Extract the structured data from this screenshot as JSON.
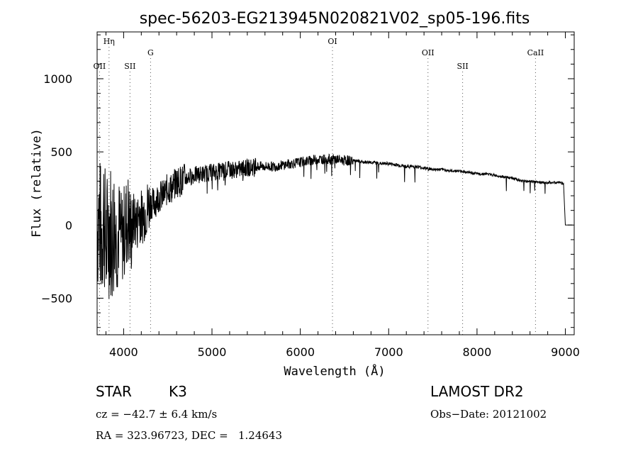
{
  "chart_data": {
    "type": "line",
    "title": "spec-56203-EG213945N020821V02_sp05-196.fits",
    "xlabel": "Wavelength (Å)",
    "ylabel": "Flux (relative)",
    "xlim": [
      3700,
      9100
    ],
    "ylim": [
      -750,
      1320
    ],
    "xticks": [
      4000,
      5000,
      6000,
      7000,
      8000,
      9000
    ],
    "yticks": [
      -500,
      0,
      500,
      1000
    ],
    "line_markers": [
      {
        "label": "OII",
        "wavelength": 3727,
        "tier": 2
      },
      {
        "label": "Hη",
        "wavelength": 3835,
        "tier": 0
      },
      {
        "label": "SII",
        "wavelength": 4072,
        "tier": 2
      },
      {
        "label": "G",
        "wavelength": 4305,
        "tier": 1
      },
      {
        "label": "OI",
        "wavelength": 6364,
        "tier": 0
      },
      {
        "label": "OII",
        "wavelength": 7445,
        "tier": 1
      },
      {
        "label": "SII",
        "wavelength": 7837,
        "tier": 2
      },
      {
        "label": "CaII",
        "wavelength": 8662,
        "tier": 1
      }
    ],
    "series": [
      {
        "x": [
          3700,
          3725,
          3750,
          3775,
          3800,
          3825,
          3850,
          3875,
          3900,
          3925,
          3950,
          3975,
          4000,
          4025,
          4050,
          4075,
          4100,
          4125,
          4150,
          4175,
          4200,
          4250,
          4300,
          4350,
          4400,
          4450,
          4500,
          4550,
          4600,
          4650,
          4700,
          4800,
          4900,
          5000,
          5100,
          5200,
          5300,
          5400,
          5500,
          5600,
          5700,
          5800,
          5900,
          6000,
          6100,
          6200,
          6300,
          6400,
          6500,
          6600,
          6700,
          6800,
          6900,
          7000,
          7100,
          7200,
          7300,
          7400,
          7500,
          7600,
          7700,
          7800,
          7900,
          8000,
          8100,
          8200,
          8300,
          8400,
          8500,
          8600,
          8700,
          8800,
          8900,
          8950,
          8980,
          9000
        ],
        "y": [
          0,
          50,
          -100,
          100,
          -150,
          -50,
          0,
          -100,
          50,
          -150,
          0,
          -100,
          -50,
          0,
          50,
          -50,
          0,
          50,
          0,
          100,
          50,
          100,
          150,
          150,
          200,
          200,
          250,
          250,
          300,
          300,
          320,
          340,
          350,
          360,
          370,
          380,
          380,
          390,
          400,
          400,
          400,
          410,
          420,
          430,
          440,
          450,
          450,
          450,
          440,
          440,
          430,
          430,
          420,
          420,
          410,
          400,
          400,
          390,
          380,
          380,
          370,
          370,
          360,
          350,
          350,
          340,
          330,
          320,
          300,
          300,
          290,
          290,
          290,
          290,
          280,
          0
        ]
      }
    ]
  },
  "info": {
    "object_class": "STAR",
    "subclass": "K3",
    "survey": "LAMOST DR2",
    "cz": "cz = −42.7 ± 6.4 km/s",
    "obs_date": "Obs−Date: 20121002",
    "radec": "RA = 323.96723, DEC =   1.24643"
  }
}
